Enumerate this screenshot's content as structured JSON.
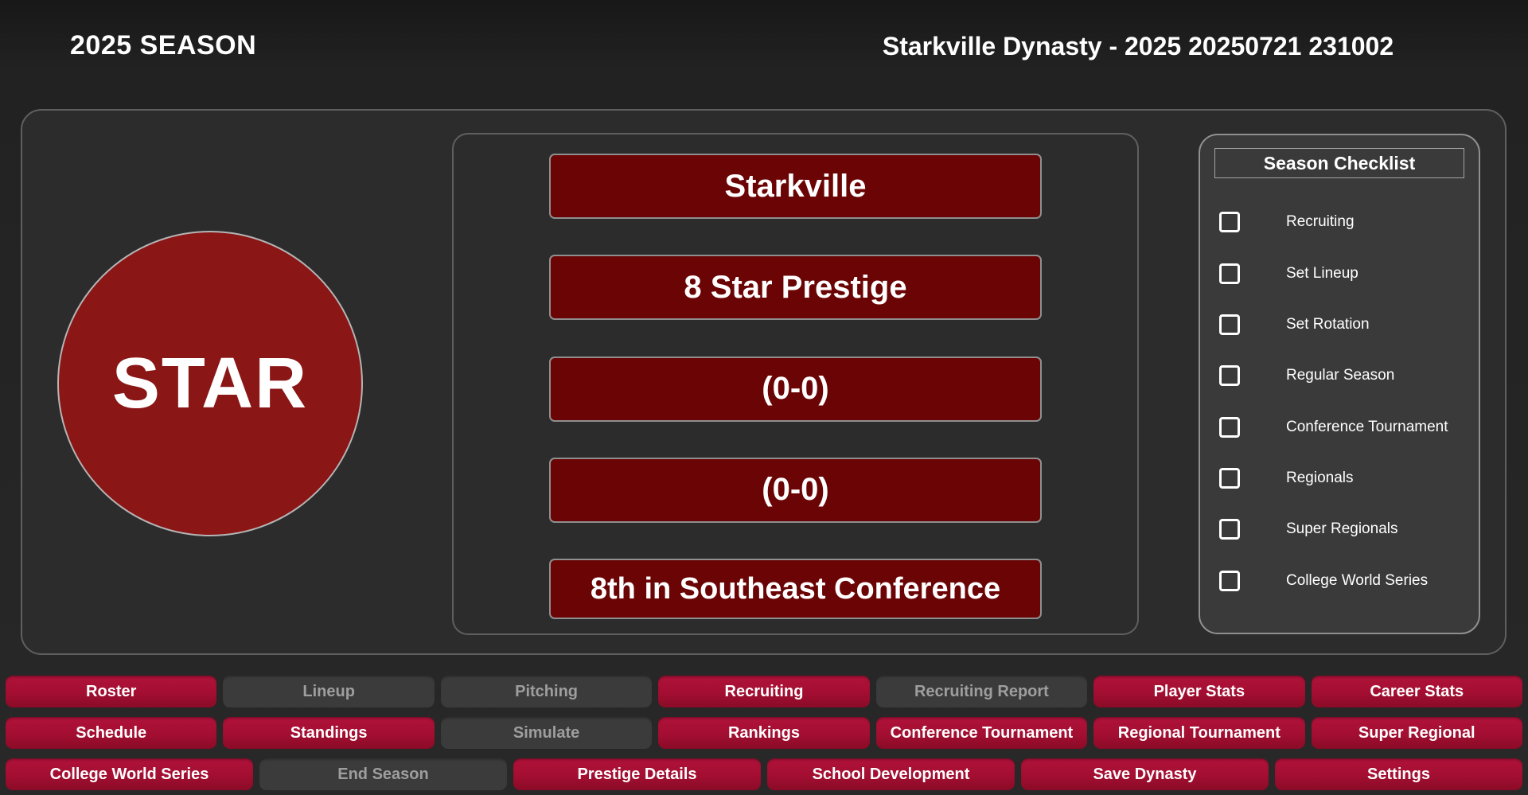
{
  "header": {
    "season_title": "2025 SEASON",
    "dynasty_title": "Starkville Dynasty - 2025 20250721 231002"
  },
  "team": {
    "logo_text": "STAR",
    "name": "Starkville",
    "prestige": "8 Star Prestige",
    "overall_record": "(0-0)",
    "conference_record": "(0-0)",
    "standing": "8th in Southeast Conference"
  },
  "checklist": {
    "title": "Season Checklist",
    "items": [
      {
        "label": "Recruiting",
        "checked": false
      },
      {
        "label": "Set Lineup",
        "checked": false
      },
      {
        "label": "Set Rotation",
        "checked": false
      },
      {
        "label": "Regular Season",
        "checked": false
      },
      {
        "label": "Conference Tournament",
        "checked": false
      },
      {
        "label": "Regionals",
        "checked": false
      },
      {
        "label": "Super Regionals",
        "checked": false
      },
      {
        "label": "College World Series",
        "checked": false
      }
    ]
  },
  "nav": {
    "rows": [
      [
        {
          "label": "Roster",
          "enabled": true
        },
        {
          "label": "Lineup",
          "enabled": false
        },
        {
          "label": "Pitching",
          "enabled": false
        },
        {
          "label": "Recruiting",
          "enabled": true
        },
        {
          "label": "Recruiting Report",
          "enabled": false
        },
        {
          "label": "Player Stats",
          "enabled": true
        },
        {
          "label": "Career Stats",
          "enabled": true
        }
      ],
      [
        {
          "label": "Schedule",
          "enabled": true
        },
        {
          "label": "Standings",
          "enabled": true
        },
        {
          "label": "Simulate",
          "enabled": false
        },
        {
          "label": "Rankings",
          "enabled": true
        },
        {
          "label": "Conference Tournament",
          "enabled": true
        },
        {
          "label": "Regional Tournament",
          "enabled": true
        },
        {
          "label": "Super Regional",
          "enabled": true
        }
      ],
      [
        {
          "label": "College World Series",
          "enabled": true
        },
        {
          "label": "End Season",
          "enabled": false
        },
        {
          "label": "Prestige Details",
          "enabled": true
        },
        {
          "label": "School Development",
          "enabled": true
        },
        {
          "label": "Save Dynasty",
          "enabled": true
        },
        {
          "label": "Settings",
          "enabled": true
        }
      ]
    ]
  },
  "colors": {
    "crimson": "#a30e31",
    "crimson_highlight": "#b0123a",
    "crimson_shadow": "#8a0b27",
    "box_maroon": "#6b0404",
    "logo_maroon": "#8a1616",
    "panel_gray": "#2c2c2c",
    "checklist_gray": "#3a3a3a"
  }
}
